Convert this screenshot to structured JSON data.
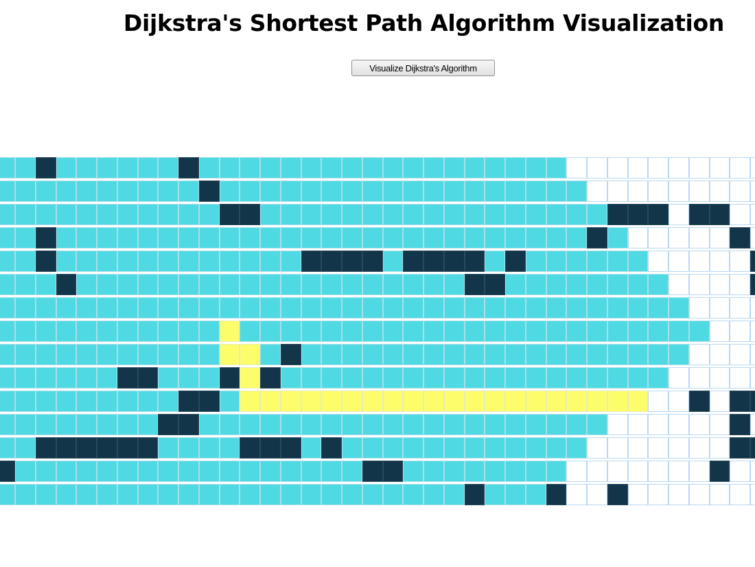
{
  "header": {
    "title": "Dijkstra's Shortest Path Algorithm Visualization",
    "visualize_button_label": "Visualize Dijkstra's Algorithm"
  },
  "legend_codes": {
    "V": "visited",
    "W": "wall",
    "P": "shortest-path",
    "U": "unvisited"
  },
  "colors": {
    "visited": "#4fdae3",
    "wall": "#12354a",
    "path": "#fdfd6c",
    "unvisited": "#ffffff",
    "cell_border": "#b9d8f3"
  },
  "grid": {
    "rows": 15,
    "visible_columns": 38,
    "cells": [
      "VVWVVVVVVWVVVVVVVVVVVVVVVVVVUUUUUUUUUU",
      "VVVVVVVVVVWVVVVVVVVVVVVVVVVVVUUUUUUUUU",
      "VVVVVVVVVVVWWVVVVVVVVVVVVVVVVVWWWUWWUU",
      "VVWVVVVVVVVVVVVVVVVVVVVVVVVVVWVUUUUUWU",
      "VVWVVVVVVVVVVVVWWWWVWWWWVWVVVVVVUUUUUW",
      "VVVWVVVVVVVVVVVVVVVVVVVWWVVVVVVVVUUUUW",
      "VVVVVVVVVVVVVVVVVVVVVVVVVVVVVVVVVVUUUU",
      "VVVVVVVVVVVPVVVVVVVVVVVVVVVVVVVVVVVUUU",
      "VVVVVVVVVVVPPVWVVVVVVVVVVVVVVVVVVVUUUU",
      "VVVVVVWWVVVWPWVVVVVVVVVVVVVVVVVVVUUUUU",
      "VVVVVVVVVWWVPPPPPPPPPPPPPPPPPPPPUUWUWW",
      "VVVVVVVVWWVVVVVVVVVVVVVVVVVVVVUUUUUUWU",
      "VVWWWWWWVVVVWWWVWVVVVVVVVVVVVUUUUUUUWW",
      "WVVVVVVVVVVVVVVVVVWWVVVVVVVVUUUUUUUWUU",
      "VVVVVVVVVVVVVVVVVVVVVVVWVVVWUUWUUUUUUU"
    ]
  }
}
